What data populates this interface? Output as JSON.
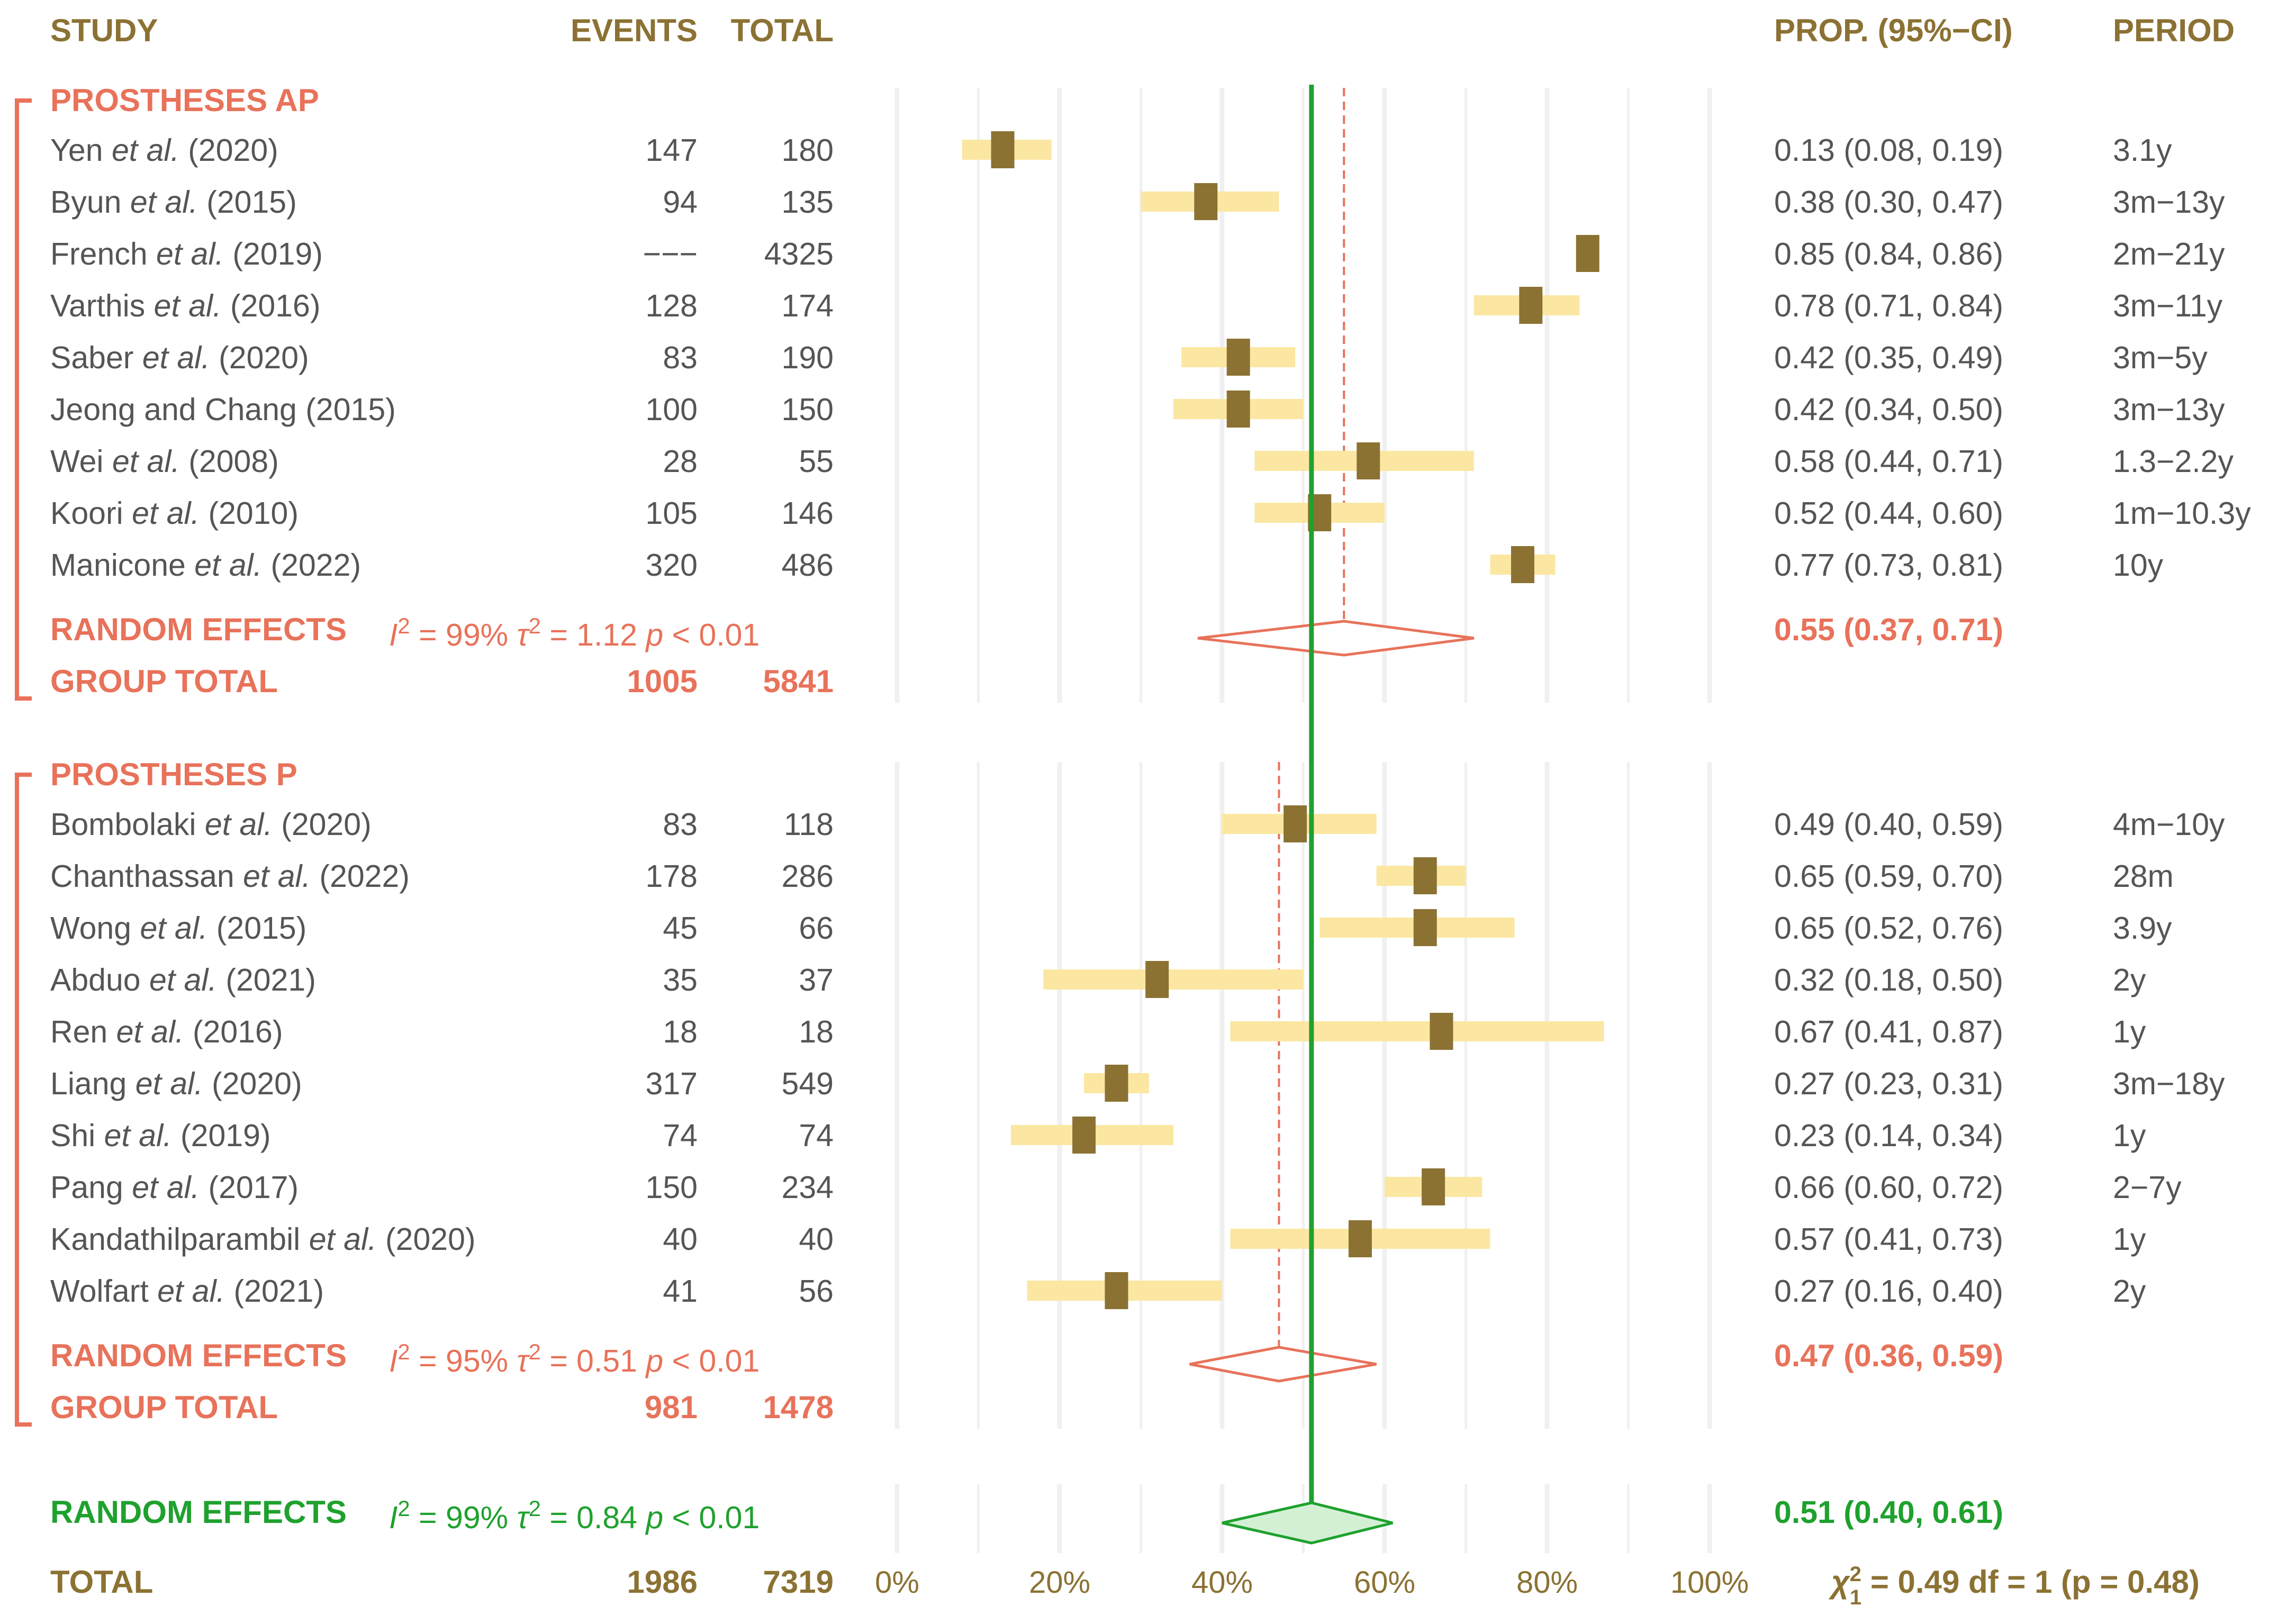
{
  "chart_data": {
    "type": "forest",
    "headers": {
      "study": "STUDY",
      "events": "EVENTS",
      "total": "TOTAL",
      "prop": "PROP. (95%−CI)",
      "period": "PERIOD"
    },
    "x_axis": {
      "range": [
        0,
        1
      ],
      "ticks": [
        "0%",
        "20%",
        "40%",
        "60%",
        "80%",
        "100%"
      ]
    },
    "overall_effect_line": 0.51,
    "groups": [
      {
        "name": "PROSTHESES AP",
        "pooled_line": 0.55,
        "studies": [
          {
            "author": "Yen",
            "etal": true,
            "year": "(2020)",
            "events": "147",
            "total": "180",
            "est": 0.13,
            "lo": 0.08,
            "hi": 0.19,
            "ci": "0.13 (0.08, 0.19)",
            "period": "3.1y"
          },
          {
            "author": "Byun",
            "etal": true,
            "year": "(2015)",
            "events": "94",
            "total": "135",
            "est": 0.38,
            "lo": 0.3,
            "hi": 0.47,
            "ci": "0.38 (0.30, 0.47)",
            "period": "3m−13y"
          },
          {
            "author": "French",
            "etal": true,
            "year": "(2019)",
            "events": "−−−",
            "total": "4325",
            "est": 0.85,
            "lo": 0.84,
            "hi": 0.86,
            "ci": "0.85 (0.84, 0.86)",
            "period": "2m−21y"
          },
          {
            "author": "Varthis",
            "etal": true,
            "year": "(2016)",
            "events": "128",
            "total": "174",
            "est": 0.78,
            "lo": 0.71,
            "hi": 0.84,
            "ci": "0.78 (0.71, 0.84)",
            "period": "3m−11y"
          },
          {
            "author": "Saber",
            "etal": true,
            "year": "(2020)",
            "events": "83",
            "total": "190",
            "est": 0.42,
            "lo": 0.35,
            "hi": 0.49,
            "ci": "0.42 (0.35, 0.49)",
            "period": "3m−5y"
          },
          {
            "author": "Jeong and Chang",
            "etal": false,
            "year": "(2015)",
            "events": "100",
            "total": "150",
            "est": 0.42,
            "lo": 0.34,
            "hi": 0.5,
            "ci": "0.42 (0.34, 0.50)",
            "period": "3m−13y"
          },
          {
            "author": "Wei",
            "etal": true,
            "year": "(2008)",
            "events": "28",
            "total": "55",
            "est": 0.58,
            "lo": 0.44,
            "hi": 0.71,
            "ci": "0.58 (0.44, 0.71)",
            "period": "1.3−2.2y"
          },
          {
            "author": "Koori",
            "etal": true,
            "year": "(2010)",
            "events": "105",
            "total": "146",
            "est": 0.52,
            "lo": 0.44,
            "hi": 0.6,
            "ci": "0.52 (0.44, 0.60)",
            "period": "1m−10.3y"
          },
          {
            "author": "Manicone",
            "etal": true,
            "year": "(2022)",
            "events": "320",
            "total": "486",
            "est": 0.77,
            "lo": 0.73,
            "hi": 0.81,
            "ci": "0.77 (0.73, 0.81)",
            "period": "10y"
          }
        ],
        "random_effects": {
          "label": "RANDOM EFFECTS",
          "i2": "99%",
          "tau2": "1.12",
          "p": "0.01",
          "est": 0.55,
          "lo": 0.37,
          "hi": 0.71,
          "ci": "0.55 (0.37, 0.71)"
        },
        "group_total": {
          "label": "GROUP TOTAL",
          "events": "1005",
          "total": "5841"
        }
      },
      {
        "name": "PROSTHESES P",
        "pooled_line": 0.47,
        "studies": [
          {
            "author": "Bombolaki",
            "etal": true,
            "year": "(2020)",
            "events": "83",
            "total": "118",
            "est": 0.49,
            "lo": 0.4,
            "hi": 0.59,
            "ci": "0.49 (0.40, 0.59)",
            "period": "4m−10y"
          },
          {
            "author": "Chanthassan",
            "etal": true,
            "year": "(2022)",
            "events": "178",
            "total": "286",
            "est": 0.65,
            "lo": 0.59,
            "hi": 0.7,
            "ci": "0.65 (0.59, 0.70)",
            "period": "28m"
          },
          {
            "author": "Wong",
            "etal": true,
            "year": "(2015)",
            "events": "45",
            "total": "66",
            "est": 0.65,
            "lo": 0.52,
            "hi": 0.76,
            "ci": "0.65 (0.52, 0.76)",
            "period": "3.9y"
          },
          {
            "author": "Abduo",
            "etal": true,
            "year": "(2021)",
            "events": "35",
            "total": "37",
            "est": 0.32,
            "lo": 0.18,
            "hi": 0.5,
            "ci": "0.32 (0.18, 0.50)",
            "period": "2y"
          },
          {
            "author": "Ren",
            "etal": true,
            "year": "(2016)",
            "events": "18",
            "total": "18",
            "est": 0.67,
            "lo": 0.41,
            "hi": 0.87,
            "ci": "0.67 (0.41, 0.87)",
            "period": "1y"
          },
          {
            "author": "Liang",
            "etal": true,
            "year": "(2020)",
            "events": "317",
            "total": "549",
            "est": 0.27,
            "lo": 0.23,
            "hi": 0.31,
            "ci": "0.27 (0.23, 0.31)",
            "period": "3m−18y"
          },
          {
            "author": "Shi",
            "etal": true,
            "year": "(2019)",
            "events": "74",
            "total": "74",
            "est": 0.23,
            "lo": 0.14,
            "hi": 0.34,
            "ci": "0.23 (0.14, 0.34)",
            "period": "1y"
          },
          {
            "author": "Pang",
            "etal": true,
            "year": "(2017)",
            "events": "150",
            "total": "234",
            "est": 0.66,
            "lo": 0.6,
            "hi": 0.72,
            "ci": "0.66 (0.60, 0.72)",
            "period": "2−7y"
          },
          {
            "author": "Kandathilparambil",
            "etal": true,
            "year": "(2020)",
            "events": "40",
            "total": "40",
            "est": 0.57,
            "lo": 0.41,
            "hi": 0.73,
            "ci": "0.57 (0.41, 0.73)",
            "period": "1y"
          },
          {
            "author": "Wolfart",
            "etal": true,
            "year": "(2021)",
            "events": "41",
            "total": "56",
            "est": 0.27,
            "lo": 0.16,
            "hi": 0.4,
            "ci": "0.27 (0.16, 0.40)",
            "period": "2y"
          }
        ],
        "random_effects": {
          "label": "RANDOM EFFECTS",
          "i2": "95%",
          "tau2": "0.51",
          "p": "0.01",
          "est": 0.47,
          "lo": 0.36,
          "hi": 0.59,
          "ci": "0.47 (0.36, 0.59)"
        },
        "group_total": {
          "label": "GROUP TOTAL",
          "events": "981",
          "total": "1478"
        }
      }
    ],
    "overall": {
      "random_effects": {
        "label": "RANDOM EFFECTS",
        "i2": "99%",
        "tau2": "0.84",
        "p": "0.01",
        "est": 0.51,
        "lo": 0.4,
        "hi": 0.61,
        "ci": "0.51 (0.40, 0.61)"
      },
      "total": {
        "label": "TOTAL",
        "events": "1986",
        "total": "7319"
      },
      "subgroup_test": {
        "chi2": "0.49",
        "df": "1",
        "p": "0.48"
      }
    },
    "colors": {
      "header": "#8B7233",
      "group": "#E8725A",
      "overall": "#1FA12E",
      "point": "#8B7233",
      "ci_bar": "#FBE7A1",
      "text": "#555555",
      "grid": "#F0F0F0"
    }
  }
}
